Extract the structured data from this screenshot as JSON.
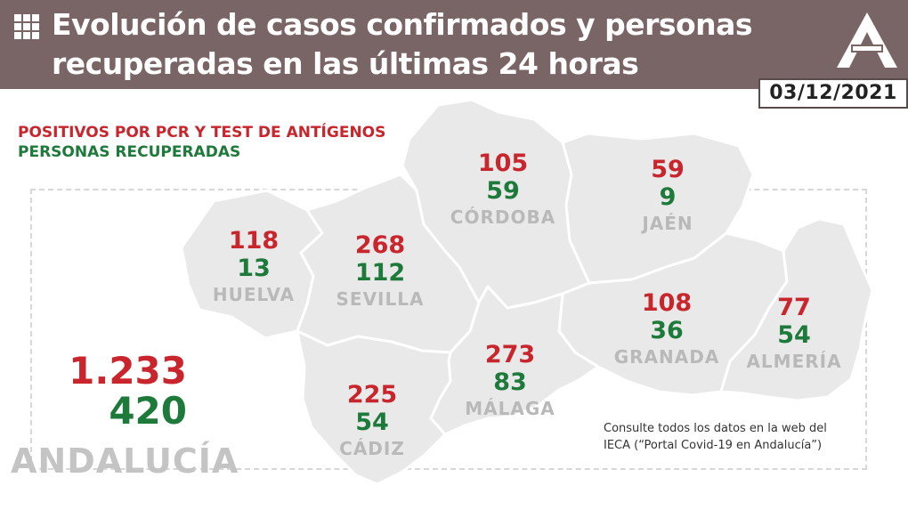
{
  "header": {
    "title": "Evolución de casos confirmados y personas recuperadas en las últimas 24 horas",
    "date": "03/12/2021",
    "menu_icon": "grid-icon",
    "logo_icon": "junta-andalucia-a-logo-icon",
    "background": "#7a6566"
  },
  "legend": {
    "positives": "POSITIVOS POR PCR Y TEST DE ANTÍGENOS",
    "recovered": "PERSONAS RECUPERADAS"
  },
  "colors": {
    "positives": "#c8252c",
    "recovered": "#1d7a3a",
    "province_name": "#b9b9b9",
    "map_fill": "#e9e9e9"
  },
  "provinces": {
    "huelva": {
      "name": "HUELVA",
      "positives": "118",
      "recovered": "13"
    },
    "sevilla": {
      "name": "SEVILLA",
      "positives": "268",
      "recovered": "112"
    },
    "cordoba": {
      "name": "CÓRDOBA",
      "positives": "105",
      "recovered": "59"
    },
    "jaen": {
      "name": "JAÉN",
      "positives": "59",
      "recovered": "9"
    },
    "granada": {
      "name": "GRANADA",
      "positives": "108",
      "recovered": "36"
    },
    "almeria": {
      "name": "ALMERÍA",
      "positives": "77",
      "recovered": "54"
    },
    "malaga": {
      "name": "MÁLAGA",
      "positives": "273",
      "recovered": "83"
    },
    "cadiz": {
      "name": "CÁDIZ",
      "positives": "225",
      "recovered": "54"
    }
  },
  "total": {
    "name": "ANDALUCÍA",
    "positives": "1.233",
    "recovered": "420"
  },
  "note": {
    "line1": "Consulte todos los datos en la web del",
    "line2": "IECA (“Portal Covid-19 en Andalucía”)"
  }
}
